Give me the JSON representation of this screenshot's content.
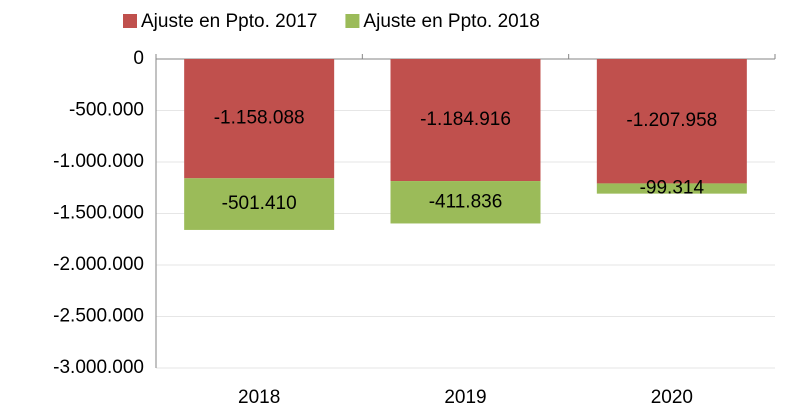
{
  "chart_data": {
    "type": "bar",
    "stacked": true,
    "legend": "top",
    "categories": [
      "2018",
      "2019",
      "2020"
    ],
    "series": [
      {
        "name": "Ajuste en Ppto. 2017",
        "color": "#c0504d",
        "values": [
          -1158088,
          -1184916,
          -1207958
        ],
        "value_labels": [
          "-1.158.088",
          "-1.184.916",
          "-1.207.958"
        ]
      },
      {
        "name": "Ajuste en Ppto. 2018",
        "color": "#9bbb59",
        "values": [
          -501410,
          -411836,
          -99314
        ],
        "value_labels": [
          "-501.410",
          "-411.836",
          "-99.314"
        ]
      }
    ],
    "ylim": [
      -3000000,
      0
    ],
    "yticks": [
      0,
      {
        "value": -500000,
        "label": "-500.000"
      },
      {
        "value": -1000000,
        "label": "-1.000.000"
      },
      {
        "value": -1500000,
        "label": "-1.500.000"
      },
      {
        "value": -2000000,
        "label": "-2.000.000"
      },
      {
        "value": -2500000,
        "label": "-2.500.000"
      },
      {
        "value": -3000000,
        "label": "-3.000.000"
      }
    ],
    "grid": true
  }
}
